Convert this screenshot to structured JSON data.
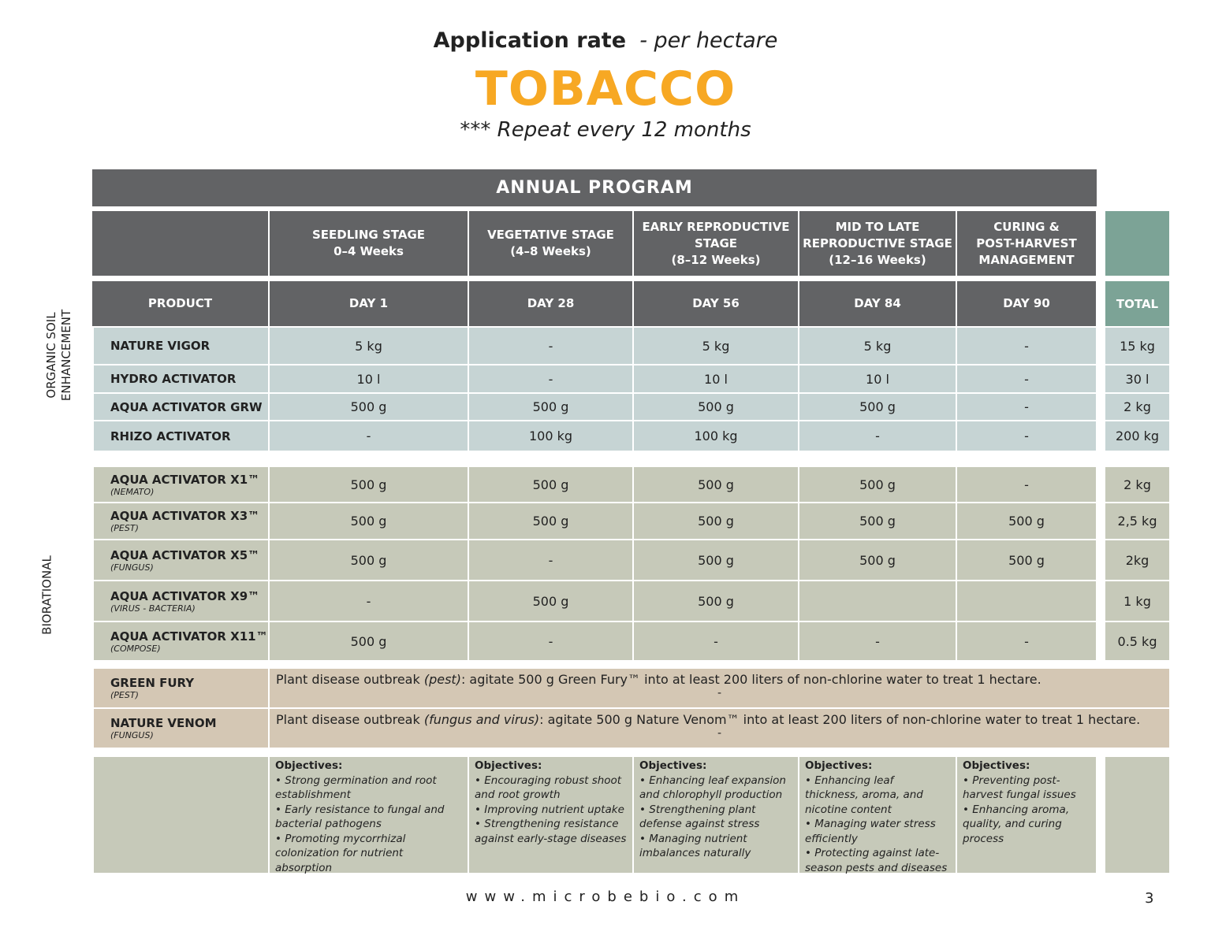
{
  "title": {
    "bold": "Application rate",
    "italic": "- per hectare",
    "crop": "TOBACCO",
    "repeat": "*** Repeat every 12 months"
  },
  "colors": {
    "accent": "#f7a823",
    "header": "#626365",
    "total": "#7ca396"
  },
  "program_title": "ANNUAL PROGRAM",
  "side_labels": {
    "soil": "ORGANIC SOIL ENHANCEMENT",
    "bio": "BIORATIONAL"
  },
  "stages": [
    "SEEDLING STAGE\n0–4 Weeks",
    "VEGETATIVE STAGE\n(4–8 Weeks)",
    "EARLY REPRODUCTIVE STAGE\n(8–12 Weeks)",
    "MID TO LATE REPRODUCTIVE STAGE\n(12–16 Weeks)",
    "CURING &\nPOST-HARVEST MANAGEMENT"
  ],
  "columns": [
    "PRODUCT",
    "DAY 1",
    "DAY 28",
    "DAY 56",
    "DAY 84",
    "DAY 90",
    "TOTAL"
  ],
  "soil_rows": [
    {
      "name": "NATURE VIGOR",
      "values": [
        "5 kg",
        "-",
        "5 kg",
        "5 kg",
        "-"
      ],
      "total": "15 kg"
    },
    {
      "name": "HYDRO ACTIVATOR",
      "values": [
        "10 l",
        "-",
        "10 l",
        "10 l",
        "-"
      ],
      "total": "30 l"
    },
    {
      "name": "AQUA ACTIVATOR GRW",
      "values": [
        "500 g",
        "500 g",
        "500 g",
        "500 g",
        "-"
      ],
      "total": "2 kg"
    },
    {
      "name": "RHIZO ACTIVATOR",
      "values": [
        "-",
        "100 kg",
        "100 kg",
        "-",
        "-"
      ],
      "total": "200 kg"
    }
  ],
  "bio_rows": [
    {
      "name": "AQUA ACTIVATOR X1™",
      "sub": "(NEMATO)",
      "values": [
        "500 g",
        "500 g",
        "500 g",
        "500 g",
        "-"
      ],
      "total": "2 kg"
    },
    {
      "name": "AQUA ACTIVATOR X3™",
      "sub": "(PEST)",
      "values": [
        "500 g",
        "500 g",
        "500 g",
        "500 g",
        "500 g"
      ],
      "total": "2,5 kg"
    },
    {
      "name": "AQUA ACTIVATOR X5™",
      "sub": "(FUNGUS)",
      "values": [
        "500 g",
        "-",
        "500 g",
        "500 g",
        "500 g"
      ],
      "total": "2kg"
    },
    {
      "name": "AQUA ACTIVATOR X9™",
      "sub": "(VIRUS - BACTERIA)",
      "values": [
        "-",
        "500 g",
        "500 g",
        "",
        ""
      ],
      "total": "1 kg"
    },
    {
      "name": "AQUA ACTIVATOR X11™",
      "sub": "(COMPOSE)",
      "values": [
        "500 g",
        "-",
        "-",
        "-",
        "-"
      ],
      "total": "0.5 kg"
    }
  ],
  "outbreak_rows": [
    {
      "name": "GREEN FURY",
      "sub": "(PEST)",
      "pre": "Plant disease outbreak ",
      "em": "(pest)",
      "post": ": agitate 500 g Green Fury™ into at least 200 liters of non-chlorine water to treat 1 hectare.",
      "dash": "-"
    },
    {
      "name": "NATURE VENOM",
      "sub": "(FUNGUS)",
      "pre": "Plant disease outbreak ",
      "em": "(fungus and virus)",
      "post": ": agitate 500 g Nature Venom™ into at least 200 liters of non-chlorine water to treat 1 hectare.",
      "dash": "-"
    }
  ],
  "objectives_label": "Objectives:",
  "objectives": [
    [
      "Strong germination and root establishment",
      "Early resistance to fungal and bacterial pathogens",
      "Promoting mycorrhizal colonization for nutrient absorption"
    ],
    [
      "Encouraging robust shoot and root growth",
      "Improving nutrient uptake",
      "Strengthening resistance against early-stage diseases"
    ],
    [
      "Enhancing leaf expansion and chlorophyll production",
      "Strengthening plant defense against stress",
      "Managing nutrient imbalances naturally"
    ],
    [
      "Enhancing leaf thickness, aroma, and nicotine content",
      "Managing water stress efficiently",
      "Protecting against late-season pests and diseases"
    ],
    [
      "Preventing post-harvest fungal issues",
      "Enhancing aroma, quality, and curing process"
    ]
  ],
  "footer": {
    "website": "www.microbebio.com",
    "page": "3"
  }
}
